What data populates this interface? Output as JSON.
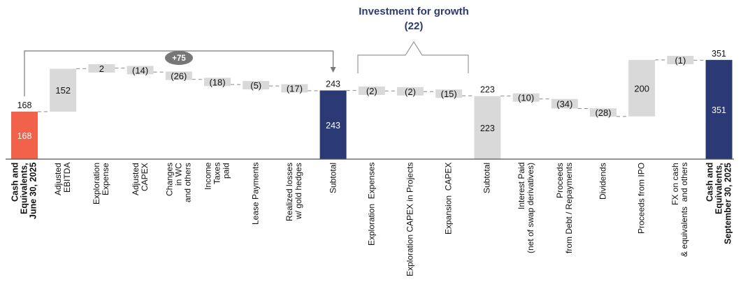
{
  "chart_data": {
    "type": "waterfall",
    "annotation_title": "Investment for growth",
    "annotation_value": "(22)",
    "bracket_label": "+75",
    "colors": {
      "start": "#f26149",
      "subtotal": "#2b3a74",
      "gray": "#d9d9d9",
      "bracket": "#777777"
    },
    "categories": [
      {
        "label": "Cash and\nEquivalents,\nJune 30, 2025",
        "value": 168,
        "kind": "start",
        "text": "168",
        "bold": true
      },
      {
        "label": "Adjusted\nEBITDA",
        "value": 152,
        "kind": "delta",
        "text": "152"
      },
      {
        "label": "Exploration\nExpense",
        "value": 2,
        "kind": "delta",
        "text": "2"
      },
      {
        "label": "Adjusted\nCAPEX",
        "value": -14,
        "kind": "delta",
        "text": "(14)"
      },
      {
        "label": "Changes\nin WC\nand others",
        "value": -26,
        "kind": "delta",
        "text": "(26)"
      },
      {
        "label": "Income\nTaxes\npaid",
        "value": -18,
        "kind": "delta",
        "text": "(18)"
      },
      {
        "label": "Lease Payments",
        "value": -5,
        "kind": "delta",
        "text": "(5)"
      },
      {
        "label": "Realized losses\nw/ gold hedges",
        "value": -17,
        "kind": "delta",
        "text": "(17)"
      },
      {
        "label": "Subtotal",
        "value": 243,
        "kind": "subtotal",
        "text": "243"
      },
      {
        "label": "Exploration  Expenses",
        "value": -2,
        "kind": "delta",
        "text": "(2)"
      },
      {
        "label": "Exploration CAPEX in Projects",
        "value": -2,
        "kind": "delta",
        "text": "(2)"
      },
      {
        "label": "Expansion  CAPEX",
        "value": -15,
        "kind": "delta",
        "text": "(15)"
      },
      {
        "label": "Subtotal",
        "value": 223,
        "kind": "subtotal-gray",
        "text": "223"
      },
      {
        "label": "Interest Paid\n(net of swap derivatives)",
        "value": -10,
        "kind": "delta",
        "text": "(10)"
      },
      {
        "label": "Proceeds\nfrom Debt / Repayments",
        "value": -34,
        "kind": "delta",
        "text": "(34)"
      },
      {
        "label": "Dividends",
        "value": -28,
        "kind": "delta",
        "text": "(28)"
      },
      {
        "label": "Proceeds from IPO",
        "value": 200,
        "kind": "delta",
        "text": "200"
      },
      {
        "label": "FX on cash\n& equivalents  and others",
        "value": -1,
        "kind": "delta",
        "text": "(1)"
      },
      {
        "label": "Cash and\nEquivalents,\nSeptember 30, 2025",
        "value": 351,
        "kind": "end",
        "text": "351",
        "bold": true
      }
    ]
  }
}
